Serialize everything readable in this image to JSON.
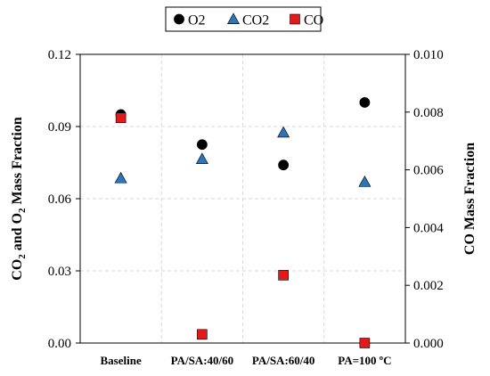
{
  "chart_data": {
    "type": "scatter",
    "categories": [
      "Baseline",
      "PA/SA:40/60",
      "PA/SA:60/40",
      "PA=100 ºC"
    ],
    "series": [
      {
        "name": "O2",
        "axis": "left",
        "marker": "circle",
        "color": "#000000",
        "values": [
          0.095,
          0.0825,
          0.074,
          0.1
        ]
      },
      {
        "name": "CO2",
        "axis": "left",
        "marker": "triangle",
        "color": "#2e75b6",
        "values": [
          0.0685,
          0.0765,
          0.0875,
          0.067
        ]
      },
      {
        "name": "CO",
        "axis": "right",
        "marker": "square",
        "color": "#e31a1c",
        "values": [
          0.0078,
          0.0003,
          0.00235,
          0.0
        ]
      }
    ],
    "y_left": {
      "label_main": "CO",
      "label_sub1": "2",
      "label_mid": " and O",
      "label_sub2": "2",
      "label_end": " Mass Fraction",
      "ylim": [
        0,
        0.12
      ],
      "ticks": [
        "0.00",
        "0.03",
        "0.06",
        "0.09",
        "0.12"
      ],
      "tick_values": [
        0,
        0.03,
        0.06,
        0.09,
        0.12
      ]
    },
    "y_right": {
      "label": "CO Mass Fraction",
      "ylim": [
        0,
        0.01
      ],
      "ticks": [
        "0.000",
        "0.002",
        "0.004",
        "0.006",
        "0.008",
        "0.010"
      ],
      "tick_values": [
        0,
        0.002,
        0.004,
        0.006,
        0.008,
        0.01
      ]
    },
    "grid": true,
    "legend": "top"
  }
}
